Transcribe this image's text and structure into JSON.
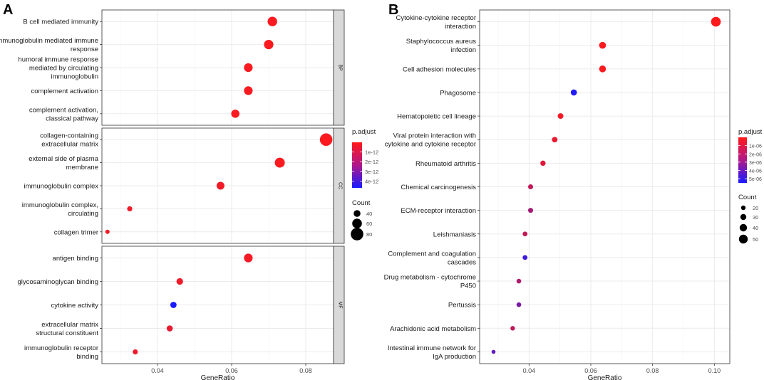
{
  "panels": {
    "A": {
      "letter": "A"
    },
    "B": {
      "letter": "B"
    }
  },
  "colors": {
    "high_p": "#ff1a1a",
    "low_p": "#1a1aff",
    "panel_bg": "#ffffff",
    "grid": "#ebebeb",
    "strip_bg": "#d9d9d9"
  },
  "chart_data": [
    {
      "type": "scatter",
      "panel": "A",
      "xlabel": "GeneRatio",
      "xlim": [
        0.025,
        0.0875
      ],
      "xticks": [
        0.04,
        0.06,
        0.08
      ],
      "xtick_labels": [
        "0.04",
        "0.06",
        "0.08"
      ],
      "facets": [
        {
          "label": "BP",
          "terms": [
            {
              "label": [
                "B cell mediated immunity"
              ],
              "x": 0.071,
              "count": 59,
              "p": 0.1
            },
            {
              "label": [
                "immunoglobulin mediated immune",
                "response"
              ],
              "x": 0.07,
              "count": 58,
              "p": 0.1
            },
            {
              "label": [
                "humoral immune response",
                "mediated by circulating",
                "immunoglobulin"
              ],
              "x": 0.0645,
              "count": 53,
              "p": 0.1
            },
            {
              "label": [
                "complement activation"
              ],
              "x": 0.0645,
              "count": 53,
              "p": 0.1
            },
            {
              "label": [
                "complement activation,",
                "classical pathway"
              ],
              "x": 0.061,
              "count": 50,
              "p": 0.1
            }
          ]
        },
        {
          "label": "CC",
          "terms": [
            {
              "label": [
                "collagen-containing",
                "extracellular matrix"
              ],
              "x": 0.0855,
              "count": 80,
              "p": 0.1
            },
            {
              "label": [
                "external side of plasma",
                "membrane"
              ],
              "x": 0.073,
              "count": 62,
              "p": 0.1
            },
            {
              "label": [
                "immunoglobulin complex"
              ],
              "x": 0.057,
              "count": 47,
              "p": 0.3
            },
            {
              "label": [
                "immunoglobulin complex,",
                "circulating"
              ],
              "x": 0.0325,
              "count": 28,
              "p": 0.3
            },
            {
              "label": [
                "collagen trimer"
              ],
              "x": 0.0265,
              "count": 22,
              "p": 0.2
            }
          ]
        },
        {
          "label": "MF",
          "terms": [
            {
              "label": [
                "antigen binding"
              ],
              "x": 0.0645,
              "count": 53,
              "p": 0.2
            },
            {
              "label": [
                "glycosaminoglycan binding"
              ],
              "x": 0.046,
              "count": 38,
              "p": 0.3
            },
            {
              "label": [
                "cytokine activity"
              ],
              "x": 0.0443,
              "count": 36,
              "p": 4.7
            },
            {
              "label": [
                "extracellular matrix",
                "structural constituent"
              ],
              "x": 0.0433,
              "count": 35,
              "p": 0.5
            },
            {
              "label": [
                "immunoglobulin receptor",
                "binding"
              ],
              "x": 0.034,
              "count": 28,
              "p": 0.4
            }
          ]
        }
      ],
      "legend": {
        "color_title": "p.adjust",
        "color_range": [
          0,
          4.7
        ],
        "color_ticks": [
          1,
          2,
          3,
          4
        ],
        "color_tick_labels": [
          "1e-12",
          "2e-12",
          "3e-12",
          "4e-12"
        ],
        "size_title": "Count",
        "size_values": [
          40,
          60,
          80
        ],
        "size_labels": [
          "40",
          "60",
          "80"
        ],
        "placement": "right"
      }
    },
    {
      "type": "scatter",
      "panel": "B",
      "xlabel": "GeneRatio",
      "xlim": [
        0.024,
        0.105
      ],
      "xticks": [
        0.04,
        0.06,
        0.08,
        0.1
      ],
      "xtick_labels": [
        "0.04",
        "0.06",
        "0.08",
        "0.10"
      ],
      "terms": [
        {
          "label": [
            "Cytokine-cytokine receptor",
            "interaction"
          ],
          "x": 0.1005,
          "count": 56,
          "p": 0.05
        },
        {
          "label": [
            "Staphylococcus aureus",
            "infection"
          ],
          "x": 0.0638,
          "count": 36,
          "p": 0.1
        },
        {
          "label": [
            "Cell adhesion molecules"
          ],
          "x": 0.0638,
          "count": 36,
          "p": 0.1
        },
        {
          "label": [
            "Phagosome"
          ],
          "x": 0.0545,
          "count": 31,
          "p": 5.3
        },
        {
          "label": [
            "Hematopoietic cell lineage"
          ],
          "x": 0.0502,
          "count": 28,
          "p": 0.3
        },
        {
          "label": [
            "Viral protein interaction with",
            "cytokine and cytokine receptor"
          ],
          "x": 0.0483,
          "count": 27,
          "p": 0.5
        },
        {
          "label": [
            "Rheumatoid arthritis"
          ],
          "x": 0.0445,
          "count": 25,
          "p": 0.8
        },
        {
          "label": [
            "Chemical carcinogenesis"
          ],
          "x": 0.0405,
          "count": 23,
          "p": 1.5
        },
        {
          "label": [
            "ECM-receptor interaction"
          ],
          "x": 0.0405,
          "count": 23,
          "p": 2.2
        },
        {
          "label": [
            "Leishmaniasis"
          ],
          "x": 0.0387,
          "count": 22,
          "p": 1.5
        },
        {
          "label": [
            "Complement and coagulation",
            "cascades"
          ],
          "x": 0.0387,
          "count": 22,
          "p": 4.6
        },
        {
          "label": [
            "Drug metabolism - cytochrome",
            "P450"
          ],
          "x": 0.0367,
          "count": 21,
          "p": 2.0
        },
        {
          "label": [
            "Pertussis"
          ],
          "x": 0.0367,
          "count": 21,
          "p": 3.3
        },
        {
          "label": [
            "Arachidonic acid metabolism"
          ],
          "x": 0.0347,
          "count": 20,
          "p": 1.6
        },
        {
          "label": [
            "Intestinal immune network for",
            "IgA production"
          ],
          "x": 0.0285,
          "count": 16,
          "p": 3.9
        }
      ],
      "legend": {
        "color_title": "p.adjust",
        "color_range": [
          0,
          5.5
        ],
        "color_ticks": [
          1,
          2,
          3,
          4,
          5
        ],
        "color_tick_labels": [
          "1e-06",
          "2e-06",
          "3e-06",
          "4e-06",
          "5e-06"
        ],
        "size_title": "Count",
        "size_values": [
          20,
          30,
          40,
          50
        ],
        "size_labels": [
          "20",
          "30",
          "40",
          "50"
        ],
        "placement": "right"
      }
    }
  ]
}
